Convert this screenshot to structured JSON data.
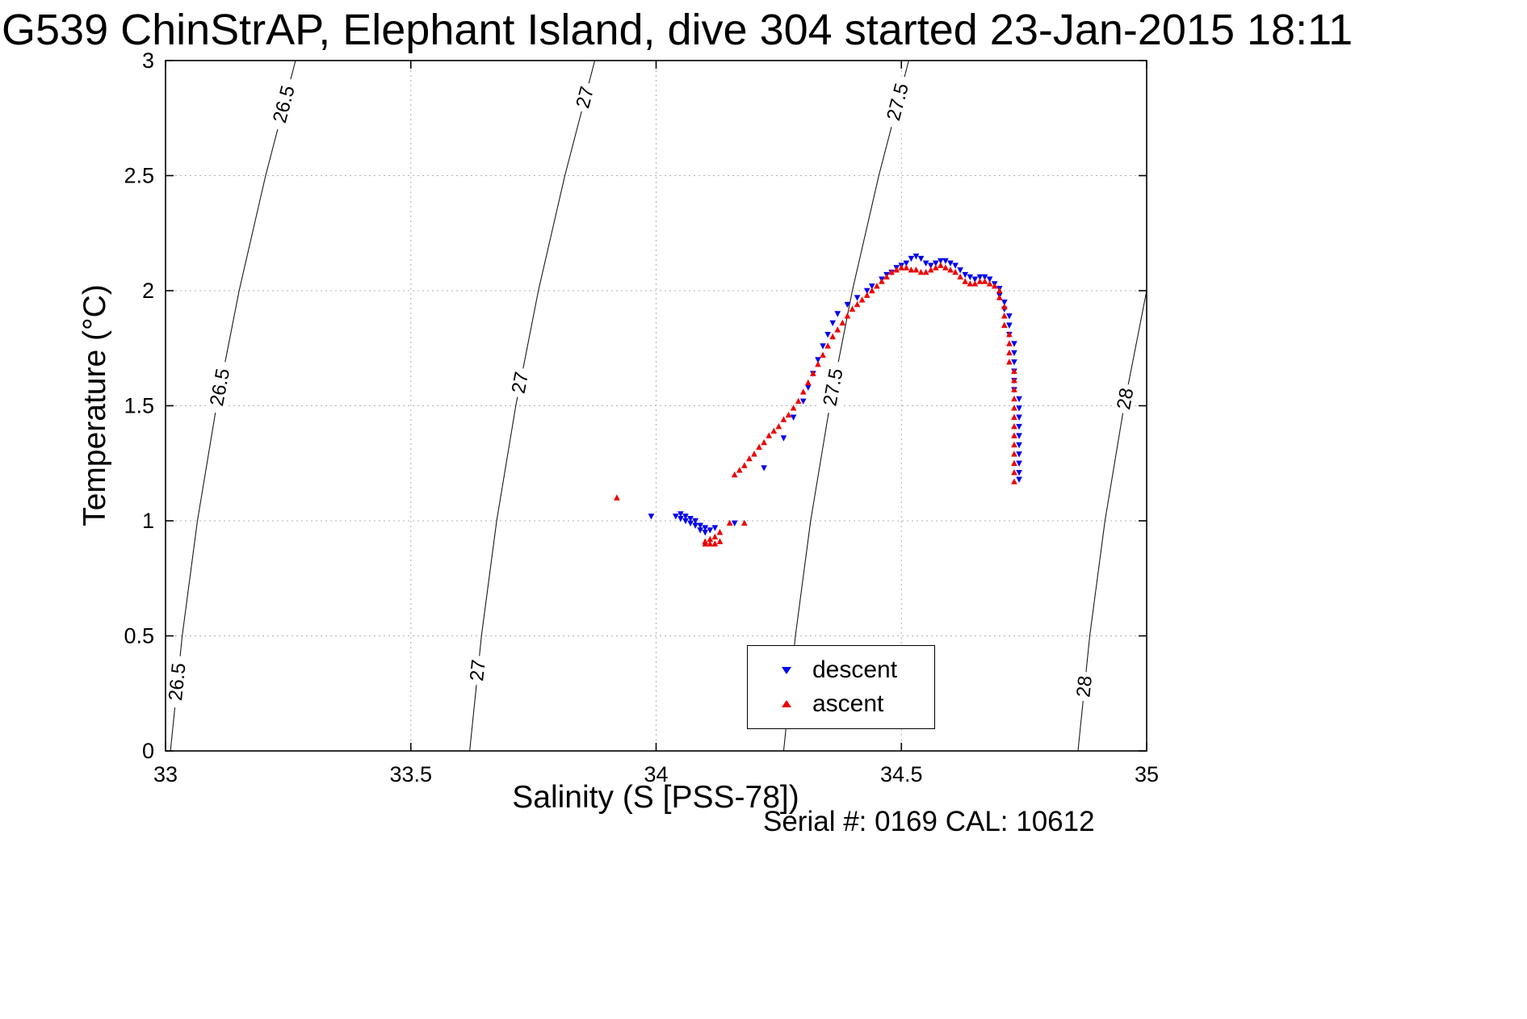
{
  "caption": "Serial #: 0169 CAL: 10612",
  "chart_data": {
    "type": "scatter",
    "title": "G539 ChinStrAP, Elephant Island, dive 304 started 23-Jan-2015 18:11",
    "xlabel": "Salinity (S [PSS-78])",
    "ylabel": "Temperature (°C)",
    "xlim": [
      33,
      35
    ],
    "ylim": [
      0,
      3
    ],
    "xticks": [
      33,
      33.5,
      34,
      34.5,
      35
    ],
    "yticks": [
      0,
      0.5,
      1,
      1.5,
      2,
      2.5,
      3
    ],
    "grid": true,
    "legend": {
      "position": "inside-lower-right",
      "entries": [
        "descent",
        "ascent"
      ]
    },
    "contour_color": "#1a1a1a",
    "isopycnal_contours": [
      {
        "value": 26.5,
        "points": [
          [
            33.01,
            0
          ],
          [
            33.034,
            0.5
          ],
          [
            33.065,
            1
          ],
          [
            33.104,
            1.5
          ],
          [
            33.15,
            2
          ],
          [
            33.204,
            2.5
          ],
          [
            33.265,
            3
          ]
        ],
        "label_T": [
          2.81,
          1.58,
          0.3
        ]
      },
      {
        "value": 27,
        "points": [
          [
            33.62,
            0
          ],
          [
            33.644,
            0.5
          ],
          [
            33.675,
            1
          ],
          [
            33.714,
            1.5
          ],
          [
            33.76,
            2
          ],
          [
            33.814,
            2.5
          ],
          [
            33.875,
            3
          ]
        ],
        "label_T": [
          2.84,
          1.6,
          0.35
        ]
      },
      {
        "value": 27.5,
        "points": [
          [
            34.26,
            0
          ],
          [
            34.284,
            0.5
          ],
          [
            34.315,
            1
          ],
          [
            34.354,
            1.5
          ],
          [
            34.4,
            2
          ],
          [
            34.454,
            2.5
          ],
          [
            34.515,
            3
          ]
        ],
        "label_T": [
          2.82,
          1.58
        ]
      },
      {
        "value": 28,
        "points": [
          [
            34.86,
            0
          ],
          [
            34.884,
            0.5
          ],
          [
            34.915,
            1
          ],
          [
            34.954,
            1.5
          ],
          [
            35.0,
            2
          ]
        ],
        "label_T": [
          1.53,
          0.28
        ]
      }
    ],
    "series": [
      {
        "name": "descent",
        "color": "#0000ee",
        "marker": "triangle-down",
        "points": [
          [
            33.99,
            1.02
          ],
          [
            34.04,
            1.02
          ],
          [
            34.05,
            1.03
          ],
          [
            34.05,
            1.01
          ],
          [
            34.06,
            1.02
          ],
          [
            34.06,
            1.0
          ],
          [
            34.07,
            1.01
          ],
          [
            34.07,
            0.99
          ],
          [
            34.08,
            1.0
          ],
          [
            34.08,
            0.98
          ],
          [
            34.09,
            0.98
          ],
          [
            34.09,
            0.96
          ],
          [
            34.1,
            0.97
          ],
          [
            34.1,
            0.95
          ],
          [
            34.11,
            0.96
          ],
          [
            34.12,
            0.97
          ],
          [
            34.16,
            0.99
          ],
          [
            34.22,
            1.23
          ],
          [
            34.26,
            1.36
          ],
          [
            34.28,
            1.45
          ],
          [
            34.3,
            1.52
          ],
          [
            34.31,
            1.58
          ],
          [
            34.32,
            1.64
          ],
          [
            34.33,
            1.7
          ],
          [
            34.34,
            1.76
          ],
          [
            34.35,
            1.81
          ],
          [
            34.36,
            1.86
          ],
          [
            34.37,
            1.9
          ],
          [
            34.39,
            1.94
          ],
          [
            34.41,
            1.97
          ],
          [
            34.43,
            2.0
          ],
          [
            34.44,
            2.02
          ],
          [
            34.46,
            2.05
          ],
          [
            34.47,
            2.07
          ],
          [
            34.48,
            2.08
          ],
          [
            34.49,
            2.1
          ],
          [
            34.5,
            2.11
          ],
          [
            34.51,
            2.12
          ],
          [
            34.52,
            2.14
          ],
          [
            34.53,
            2.15
          ],
          [
            34.54,
            2.14
          ],
          [
            34.55,
            2.12
          ],
          [
            34.56,
            2.11
          ],
          [
            34.57,
            2.12
          ],
          [
            34.58,
            2.13
          ],
          [
            34.59,
            2.13
          ],
          [
            34.6,
            2.12
          ],
          [
            34.61,
            2.11
          ],
          [
            34.62,
            2.09
          ],
          [
            34.63,
            2.07
          ],
          [
            34.64,
            2.06
          ],
          [
            34.65,
            2.05
          ],
          [
            34.66,
            2.06
          ],
          [
            34.67,
            2.06
          ],
          [
            34.68,
            2.05
          ],
          [
            34.69,
            2.03
          ],
          [
            34.7,
            2.01
          ],
          [
            34.7,
            1.98
          ],
          [
            34.71,
            1.95
          ],
          [
            34.71,
            1.92
          ],
          [
            34.72,
            1.89
          ],
          [
            34.72,
            1.85
          ],
          [
            34.72,
            1.81
          ],
          [
            34.73,
            1.77
          ],
          [
            34.73,
            1.73
          ],
          [
            34.73,
            1.69
          ],
          [
            34.73,
            1.65
          ],
          [
            34.73,
            1.61
          ],
          [
            34.73,
            1.57
          ],
          [
            34.74,
            1.53
          ],
          [
            34.74,
            1.49
          ],
          [
            34.74,
            1.45
          ],
          [
            34.74,
            1.41
          ],
          [
            34.74,
            1.37
          ],
          [
            34.74,
            1.33
          ],
          [
            34.74,
            1.29
          ],
          [
            34.74,
            1.25
          ],
          [
            34.74,
            1.21
          ],
          [
            34.74,
            1.18
          ]
        ]
      },
      {
        "name": "ascent",
        "color": "#ee0000",
        "marker": "triangle-up",
        "points": [
          [
            34.73,
            1.17
          ],
          [
            34.73,
            1.21
          ],
          [
            34.73,
            1.25
          ],
          [
            34.73,
            1.29
          ],
          [
            34.73,
            1.33
          ],
          [
            34.73,
            1.37
          ],
          [
            34.73,
            1.41
          ],
          [
            34.73,
            1.45
          ],
          [
            34.73,
            1.49
          ],
          [
            34.73,
            1.53
          ],
          [
            34.73,
            1.57
          ],
          [
            34.73,
            1.61
          ],
          [
            34.73,
            1.65
          ],
          [
            34.72,
            1.69
          ],
          [
            34.72,
            1.73
          ],
          [
            34.72,
            1.77
          ],
          [
            34.72,
            1.81
          ],
          [
            34.71,
            1.85
          ],
          [
            34.71,
            1.89
          ],
          [
            34.71,
            1.93
          ],
          [
            34.7,
            1.97
          ],
          [
            34.7,
            2.0
          ],
          [
            34.69,
            2.02
          ],
          [
            34.68,
            2.03
          ],
          [
            34.67,
            2.04
          ],
          [
            34.66,
            2.04
          ],
          [
            34.65,
            2.03
          ],
          [
            34.64,
            2.03
          ],
          [
            34.63,
            2.04
          ],
          [
            34.62,
            2.06
          ],
          [
            34.61,
            2.08
          ],
          [
            34.6,
            2.09
          ],
          [
            34.59,
            2.1
          ],
          [
            34.58,
            2.11
          ],
          [
            34.57,
            2.1
          ],
          [
            34.56,
            2.09
          ],
          [
            34.55,
            2.08
          ],
          [
            34.54,
            2.08
          ],
          [
            34.53,
            2.09
          ],
          [
            34.52,
            2.09
          ],
          [
            34.51,
            2.1
          ],
          [
            34.5,
            2.1
          ],
          [
            34.49,
            2.09
          ],
          [
            34.48,
            2.08
          ],
          [
            34.47,
            2.06
          ],
          [
            34.46,
            2.04
          ],
          [
            34.45,
            2.02
          ],
          [
            34.44,
            2.0
          ],
          [
            34.43,
            1.98
          ],
          [
            34.42,
            1.96
          ],
          [
            34.41,
            1.94
          ],
          [
            34.4,
            1.92
          ],
          [
            34.39,
            1.89
          ],
          [
            34.38,
            1.86
          ],
          [
            34.37,
            1.83
          ],
          [
            34.36,
            1.8
          ],
          [
            34.35,
            1.76
          ],
          [
            34.34,
            1.72
          ],
          [
            34.33,
            1.68
          ],
          [
            34.32,
            1.64
          ],
          [
            34.31,
            1.6
          ],
          [
            34.3,
            1.56
          ],
          [
            34.29,
            1.52
          ],
          [
            34.28,
            1.49
          ],
          [
            34.27,
            1.46
          ],
          [
            34.26,
            1.44
          ],
          [
            34.25,
            1.41
          ],
          [
            34.24,
            1.39
          ],
          [
            34.23,
            1.37
          ],
          [
            34.22,
            1.34
          ],
          [
            34.21,
            1.32
          ],
          [
            34.2,
            1.29
          ],
          [
            34.19,
            1.27
          ],
          [
            34.18,
            1.24
          ],
          [
            34.17,
            1.22
          ],
          [
            34.16,
            1.2
          ],
          [
            34.18,
            0.99
          ],
          [
            34.15,
            0.99
          ],
          [
            34.13,
            0.95
          ],
          [
            34.12,
            0.93
          ],
          [
            34.11,
            0.92
          ],
          [
            34.1,
            0.91
          ],
          [
            34.1,
            0.9
          ],
          [
            34.11,
            0.9
          ],
          [
            34.12,
            0.9
          ],
          [
            34.13,
            0.91
          ],
          [
            33.92,
            1.1
          ]
        ]
      }
    ]
  }
}
